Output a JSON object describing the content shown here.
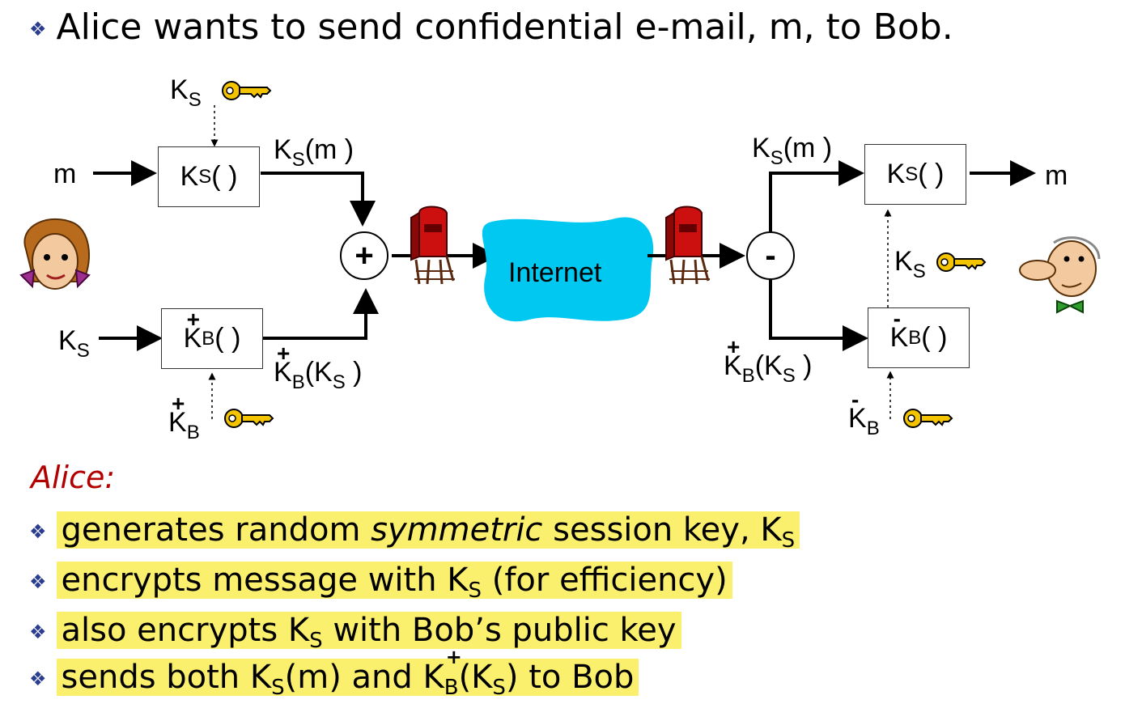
{
  "title": "Alice wants to send confidential e-mail, m, to Bob.",
  "diagram": {
    "m_in": "m",
    "m_out": "m",
    "k_top_left": "K",
    "k_sub_s": "S",
    "k_sub_b": "B",
    "box_ks_label": "K",
    "box_ks_paren": "( )",
    "ksm_label_left": "(m )",
    "ks_input": "K",
    "box_kb_label": "K",
    "kb_plus": "+",
    "kb_minus": "-",
    "kbks_left": "(K",
    "kbks_close": " )",
    "plus_sign": "+",
    "minus_sign": "-",
    "internet": "Internet",
    "ksm_label_right": "(m )"
  },
  "colors": {
    "internet": "#00c8f0",
    "key": "#f5c400",
    "mailbox": "#cc1010",
    "highlight": "#fbf06e",
    "heading": "#b20000"
  },
  "alice_heading": "Alice:",
  "bullets": {
    "b1_pre": "generates random ",
    "b1_italic": "symmetric",
    "b1_post": " session key, K",
    "b1_sub": "S",
    "b2_pre": "encrypts message with K",
    "b2_sub": "S",
    "b2_post": "  (for efficiency)",
    "b3_pre": "also encrypts K",
    "b3_sub": "S",
    "b3_post": " with Bob’s public key",
    "b4_pre": "sends both K",
    "b4_sub1": "S",
    "b4_mid": "(m) and K",
    "b4_sup": "+",
    "b4_sub2": "B",
    "b4_mid2": "(K",
    "b4_sub3": "S",
    "b4_post": ") to Bob"
  }
}
